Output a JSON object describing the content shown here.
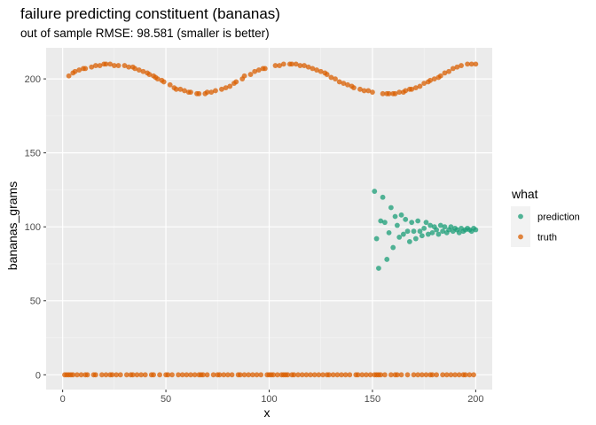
{
  "chart_data": {
    "type": "scatter",
    "title": "failure predicting constituent (bananas)",
    "subtitle": "out of sample RMSE: 98.581 (smaller is better)",
    "xlabel": "x",
    "ylabel": "bananas_grams",
    "xlim": [
      -8,
      208
    ],
    "ylim": [
      -10,
      221
    ],
    "xticks": [
      0,
      50,
      100,
      150,
      200
    ],
    "yticks": [
      0,
      50,
      100,
      150,
      200
    ],
    "grid": true,
    "legend": {
      "title": "what",
      "position": "right"
    },
    "series": [
      {
        "name": "prediction",
        "color": "#1b9e77",
        "points": [
          [
            151,
            124
          ],
          [
            152,
            92
          ],
          [
            153,
            72
          ],
          [
            154,
            104
          ],
          [
            155,
            120
          ],
          [
            156,
            103
          ],
          [
            157,
            78
          ],
          [
            158,
            96
          ],
          [
            159,
            113
          ],
          [
            160,
            86
          ],
          [
            161,
            107
          ],
          [
            162,
            101
          ],
          [
            163,
            93
          ],
          [
            164,
            108
          ],
          [
            165,
            95
          ],
          [
            166,
            105
          ],
          [
            167,
            97
          ],
          [
            168,
            90
          ],
          [
            169,
            103
          ],
          [
            170,
            97
          ],
          [
            171,
            92
          ],
          [
            172,
            104
          ],
          [
            173,
            97
          ],
          [
            174,
            94
          ],
          [
            175,
            99
          ],
          [
            176,
            103
          ],
          [
            177,
            95
          ],
          [
            178,
            101
          ],
          [
            179,
            96
          ],
          [
            180,
            100
          ],
          [
            181,
            98
          ],
          [
            182,
            95
          ],
          [
            183,
            101
          ],
          [
            184,
            97
          ],
          [
            185,
            100
          ],
          [
            186,
            96
          ],
          [
            187,
            98
          ],
          [
            188,
            100
          ],
          [
            189,
            97
          ],
          [
            190,
            99
          ],
          [
            191,
            98
          ],
          [
            192,
            96
          ],
          [
            193,
            99
          ],
          [
            194,
            97
          ],
          [
            195,
            98
          ],
          [
            196,
            99
          ],
          [
            197,
            98
          ],
          [
            198,
            97
          ],
          [
            199,
            99
          ],
          [
            200,
            98
          ]
        ]
      },
      {
        "name": "truth",
        "color": "#d95f02",
        "points": [
          [
            3,
            202
          ],
          [
            5,
            204
          ],
          [
            6,
            205
          ],
          [
            8,
            206
          ],
          [
            10,
            207
          ],
          [
            11,
            207
          ],
          [
            14,
            208
          ],
          [
            16,
            209
          ],
          [
            18,
            209
          ],
          [
            20,
            210
          ],
          [
            21,
            210
          ],
          [
            23,
            210
          ],
          [
            25,
            209
          ],
          [
            27,
            209
          ],
          [
            30,
            209
          ],
          [
            32,
            208
          ],
          [
            34,
            208
          ],
          [
            35,
            207
          ],
          [
            37,
            206
          ],
          [
            39,
            205
          ],
          [
            41,
            204
          ],
          [
            42,
            203
          ],
          [
            44,
            202
          ],
          [
            45,
            201
          ],
          [
            46,
            200
          ],
          [
            48,
            199
          ],
          [
            49,
            198
          ],
          [
            52,
            196
          ],
          [
            54,
            194
          ],
          [
            55,
            193
          ],
          [
            57,
            193
          ],
          [
            59,
            192
          ],
          [
            61,
            191
          ],
          [
            62,
            191
          ],
          [
            65,
            190
          ],
          [
            66,
            190
          ],
          [
            69,
            190
          ],
          [
            70,
            191
          ],
          [
            72,
            191
          ],
          [
            74,
            192
          ],
          [
            77,
            193
          ],
          [
            79,
            194
          ],
          [
            81,
            195
          ],
          [
            83,
            197
          ],
          [
            84,
            198
          ],
          [
            87,
            200
          ],
          [
            88,
            202
          ],
          [
            91,
            203
          ],
          [
            93,
            205
          ],
          [
            95,
            206
          ],
          [
            97,
            207
          ],
          [
            98,
            207
          ],
          [
            103,
            209
          ],
          [
            105,
            209
          ],
          [
            107,
            210
          ],
          [
            110,
            210
          ],
          [
            111,
            210
          ],
          [
            113,
            210
          ],
          [
            115,
            209
          ],
          [
            117,
            209
          ],
          [
            119,
            208
          ],
          [
            121,
            207
          ],
          [
            123,
            206
          ],
          [
            125,
            205
          ],
          [
            127,
            204
          ],
          [
            128,
            203
          ],
          [
            130,
            201
          ],
          [
            132,
            200
          ],
          [
            134,
            198
          ],
          [
            136,
            197
          ],
          [
            138,
            196
          ],
          [
            140,
            195
          ],
          [
            141,
            194
          ],
          [
            144,
            193
          ],
          [
            146,
            192
          ],
          [
            148,
            192
          ],
          [
            150,
            191
          ],
          [
            155,
            190
          ],
          [
            157,
            190
          ],
          [
            158,
            190
          ],
          [
            160,
            190
          ],
          [
            161,
            190
          ],
          [
            163,
            191
          ],
          [
            165,
            191
          ],
          [
            166,
            192
          ],
          [
            168,
            193
          ],
          [
            169,
            193
          ],
          [
            171,
            194
          ],
          [
            173,
            195
          ],
          [
            175,
            197
          ],
          [
            177,
            198
          ],
          [
            178,
            199
          ],
          [
            180,
            200
          ],
          [
            182,
            201
          ],
          [
            183,
            202
          ],
          [
            185,
            204
          ],
          [
            187,
            205
          ],
          [
            189,
            207
          ],
          [
            191,
            208
          ],
          [
            193,
            209
          ],
          [
            196,
            210
          ],
          [
            198,
            210
          ],
          [
            200,
            210
          ],
          [
            1,
            0
          ],
          [
            2,
            0
          ],
          [
            3,
            0
          ],
          [
            4,
            0
          ],
          [
            5,
            0
          ],
          [
            7,
            0
          ],
          [
            9,
            0
          ],
          [
            11,
            0
          ],
          [
            12,
            0
          ],
          [
            15,
            0
          ],
          [
            16,
            0
          ],
          [
            19,
            0
          ],
          [
            21,
            0
          ],
          [
            23,
            0
          ],
          [
            24,
            0
          ],
          [
            26,
            0
          ],
          [
            28,
            0
          ],
          [
            31,
            0
          ],
          [
            33,
            0
          ],
          [
            34,
            0
          ],
          [
            36,
            0
          ],
          [
            38,
            0
          ],
          [
            40,
            0
          ],
          [
            43,
            0
          ],
          [
            44,
            0
          ],
          [
            47,
            0
          ],
          [
            50,
            0
          ],
          [
            51,
            0
          ],
          [
            53,
            0
          ],
          [
            56,
            0
          ],
          [
            58,
            0
          ],
          [
            60,
            0
          ],
          [
            62,
            0
          ],
          [
            64,
            0
          ],
          [
            66,
            0
          ],
          [
            67,
            0
          ],
          [
            68,
            0
          ],
          [
            70,
            0
          ],
          [
            73,
            0
          ],
          [
            75,
            0
          ],
          [
            76,
            0
          ],
          [
            78,
            0
          ],
          [
            80,
            0
          ],
          [
            82,
            0
          ],
          [
            85,
            0
          ],
          [
            86,
            0
          ],
          [
            88,
            0
          ],
          [
            90,
            0
          ],
          [
            92,
            0
          ],
          [
            94,
            0
          ],
          [
            96,
            0
          ],
          [
            99,
            0
          ],
          [
            100,
            0
          ],
          [
            101,
            0
          ],
          [
            102,
            0
          ],
          [
            104,
            0
          ],
          [
            106,
            0
          ],
          [
            107,
            0
          ],
          [
            108,
            0
          ],
          [
            109,
            0
          ],
          [
            111,
            0
          ],
          [
            112,
            0
          ],
          [
            114,
            0
          ],
          [
            116,
            0
          ],
          [
            118,
            0
          ],
          [
            120,
            0
          ],
          [
            122,
            0
          ],
          [
            124,
            0
          ],
          [
            126,
            0
          ],
          [
            128,
            0
          ],
          [
            129,
            0
          ],
          [
            131,
            0
          ],
          [
            133,
            0
          ],
          [
            135,
            0
          ],
          [
            137,
            0
          ],
          [
            139,
            0
          ],
          [
            142,
            0
          ],
          [
            143,
            0
          ],
          [
            145,
            0
          ],
          [
            147,
            0
          ],
          [
            149,
            0
          ],
          [
            151,
            0
          ],
          [
            152,
            0
          ],
          [
            153,
            0
          ],
          [
            154,
            0
          ],
          [
            156,
            0
          ],
          [
            159,
            0
          ],
          [
            161,
            0
          ],
          [
            162,
            0
          ],
          [
            164,
            0
          ],
          [
            167,
            0
          ],
          [
            170,
            0
          ],
          [
            172,
            0
          ],
          [
            174,
            0
          ],
          [
            176,
            0
          ],
          [
            178,
            0
          ],
          [
            179,
            0
          ],
          [
            181,
            0
          ],
          [
            184,
            0
          ],
          [
            186,
            0
          ],
          [
            188,
            0
          ],
          [
            190,
            0
          ],
          [
            192,
            0
          ],
          [
            194,
            0
          ],
          [
            195,
            0
          ],
          [
            197,
            0
          ],
          [
            199,
            0
          ]
        ]
      }
    ]
  }
}
